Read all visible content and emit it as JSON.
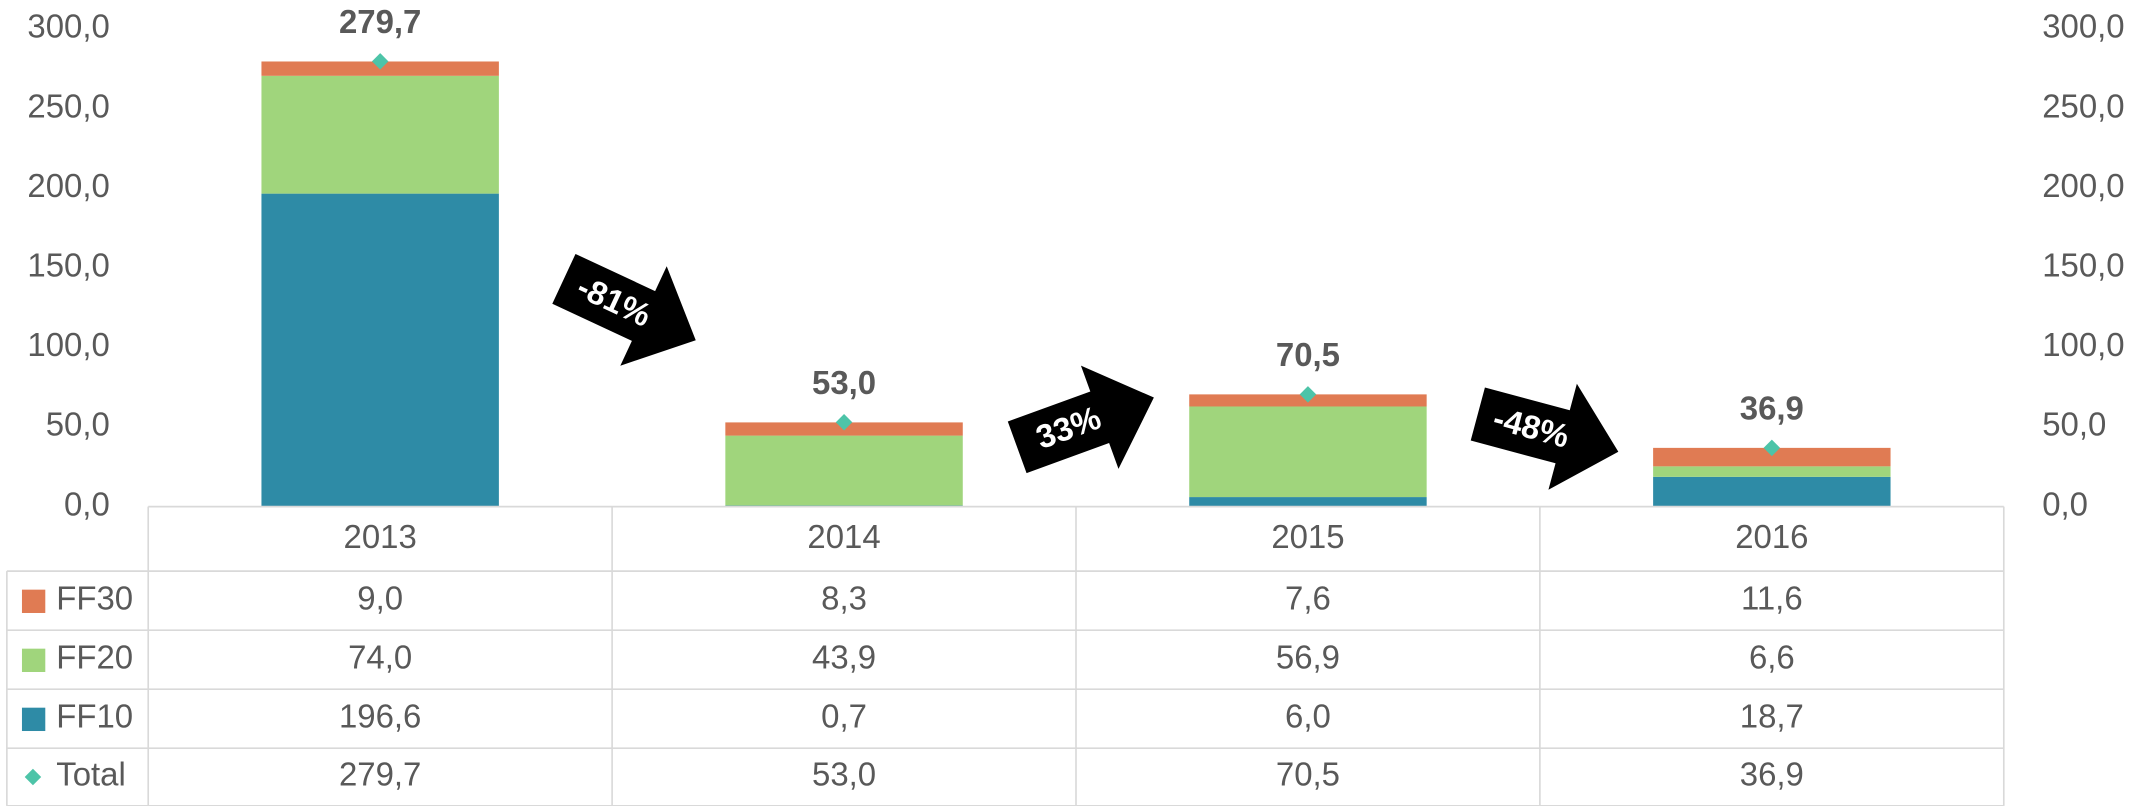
{
  "chart_data": {
    "type": "bar",
    "stacked": true,
    "categories": [
      "2013",
      "2014",
      "2015",
      "2016"
    ],
    "series": [
      {
        "name": "FF10",
        "color": "#2e8ba6",
        "values": [
          196.6,
          0.7,
          6.0,
          18.7
        ],
        "value_labels": [
          "196,6",
          "0,7",
          "6,0",
          "18,7"
        ]
      },
      {
        "name": "FF20",
        "color": "#a0d57c",
        "values": [
          74.0,
          43.9,
          56.9,
          6.6
        ],
        "value_labels": [
          "74,0",
          "43,9",
          "56,9",
          "6,6"
        ]
      },
      {
        "name": "FF30",
        "color": "#e07b53",
        "values": [
          9.0,
          8.3,
          7.6,
          11.6
        ],
        "value_labels": [
          "9,0",
          "8,3",
          "7,6",
          "11,6"
        ]
      }
    ],
    "total": {
      "name": "Total",
      "color": "#4dc4a8",
      "values": [
        279.7,
        53.0,
        70.5,
        36.9
      ],
      "value_labels": [
        "279,7",
        "53,0",
        "70,5",
        "36,9"
      ]
    },
    "ylim": [
      0,
      300
    ],
    "yticks": [
      {
        "value": 0,
        "label": "0,0"
      },
      {
        "value": 50,
        "label": "50,0"
      },
      {
        "value": 100,
        "label": "100,0"
      },
      {
        "value": 150,
        "label": "150,0"
      },
      {
        "value": 200,
        "label": "200,0"
      },
      {
        "value": 250,
        "label": "250,0"
      },
      {
        "value": 300,
        "label": "300,0"
      }
    ],
    "y2lim": [
      0,
      300
    ],
    "y2ticks": [
      {
        "value": 0,
        "label": "0,0"
      },
      {
        "value": 50,
        "label": "50,0"
      },
      {
        "value": 100,
        "label": "100,0"
      },
      {
        "value": 150,
        "label": "150,0"
      },
      {
        "value": 200,
        "label": "200,0"
      },
      {
        "value": 250,
        "label": "250,0"
      },
      {
        "value": 300,
        "label": "300,0"
      }
    ],
    "annotations": [
      "-81%",
      "33%",
      "-48%"
    ],
    "data_table": true
  }
}
